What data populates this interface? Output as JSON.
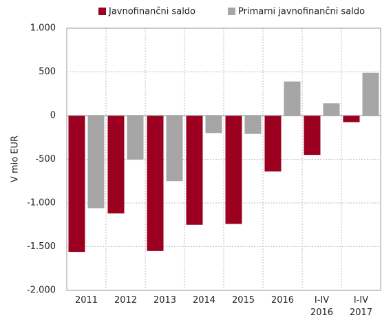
{
  "chart_data": {
    "type": "bar",
    "y_label": "V mio EUR",
    "categories": [
      "2011",
      "2012",
      "2013",
      "2014",
      "2015",
      "2016",
      "I-IV 2016",
      "I-IV 2017"
    ],
    "series": [
      {
        "name": "Javnofinančni saldo",
        "color": "#9b0020",
        "values": [
          -1560,
          -1120,
          -1550,
          -1250,
          -1240,
          -640,
          -450,
          -75
        ]
      },
      {
        "name": "Primarni javnofinančni saldo",
        "color": "#a6a6a6",
        "values": [
          -1060,
          -505,
          -750,
          -200,
          -210,
          390,
          140,
          490
        ]
      }
    ],
    "ylim": [
      -2000,
      1000
    ],
    "yticks": [
      {
        "value": -2000,
        "label": "-2.000"
      },
      {
        "value": -1500,
        "label": "-1.500"
      },
      {
        "value": -1000,
        "label": "-1.000"
      },
      -500,
      0,
      500,
      {
        "value": 1000,
        "label": "1.000"
      }
    ],
    "grid": true
  }
}
